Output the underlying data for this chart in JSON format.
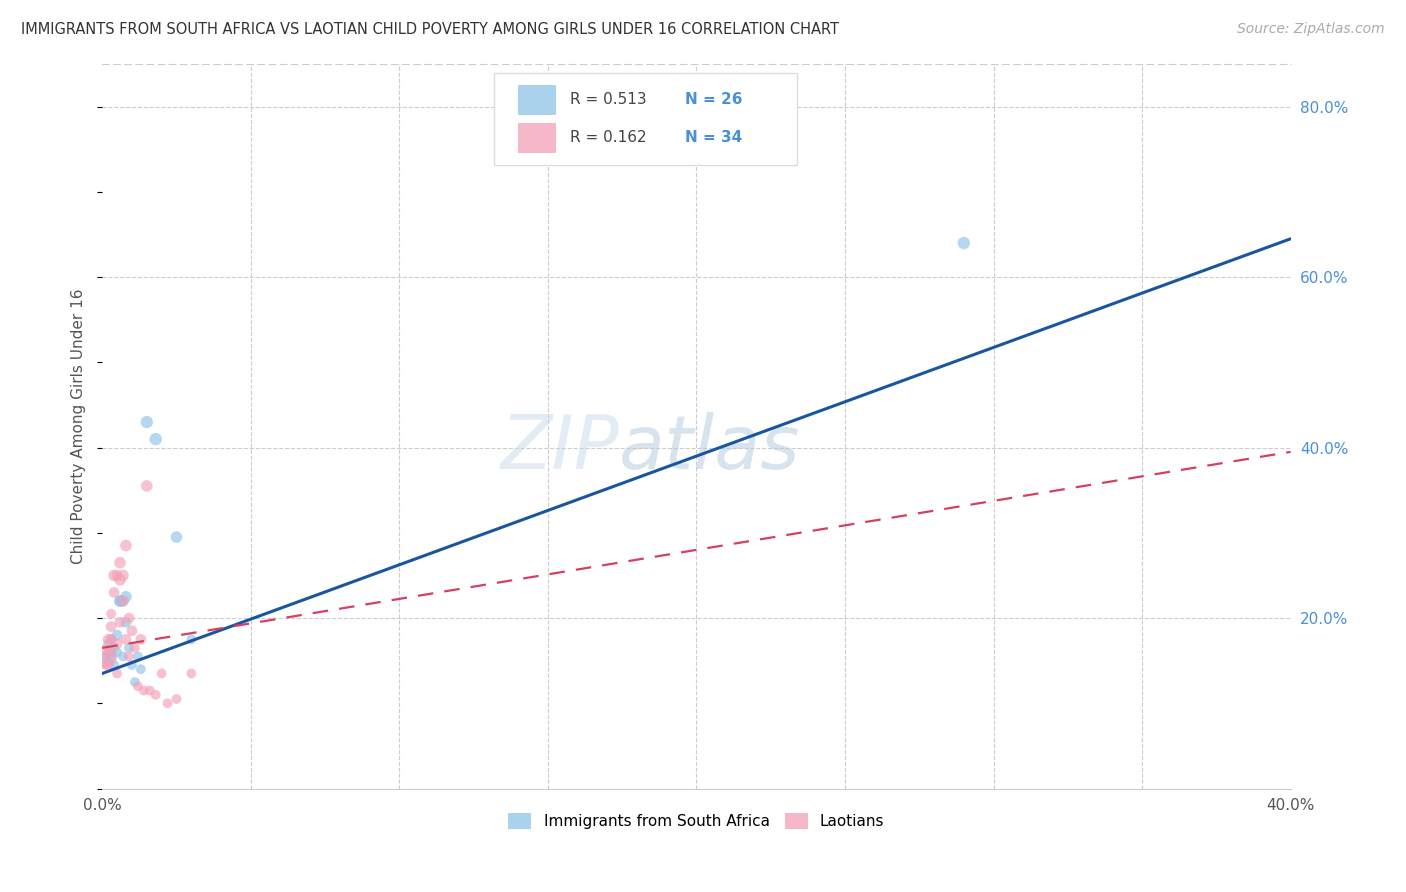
{
  "title": "IMMIGRANTS FROM SOUTH AFRICA VS LAOTIAN CHILD POVERTY AMONG GIRLS UNDER 16 CORRELATION CHART",
  "source": "Source: ZipAtlas.com",
  "ylabel": "Child Poverty Among Girls Under 16",
  "xlim": [
    0.0,
    0.4
  ],
  "ylim": [
    0.0,
    0.85
  ],
  "legend1_r": "R = 0.513",
  "legend1_n": "N = 26",
  "legend2_r": "R = 0.162",
  "legend2_n": "N = 34",
  "legend_label1": "Immigrants from South Africa",
  "legend_label2": "Laotians",
  "blue_color": "#8ec4e8",
  "pink_color": "#f4a0b8",
  "line_blue": "#1a56a0",
  "line_pink": "#d44060",
  "watermark_zip": "ZIP",
  "watermark_atlas": "atlas",
  "blue_points_x": [
    0.001,
    0.002,
    0.002,
    0.003,
    0.003,
    0.003,
    0.004,
    0.004,
    0.005,
    0.005,
    0.006,
    0.006,
    0.007,
    0.007,
    0.008,
    0.008,
    0.009,
    0.01,
    0.011,
    0.012,
    0.013,
    0.015,
    0.018,
    0.025,
    0.03,
    0.29
  ],
  "blue_points_y": [
    0.155,
    0.17,
    0.15,
    0.16,
    0.175,
    0.155,
    0.145,
    0.165,
    0.18,
    0.16,
    0.22,
    0.22,
    0.22,
    0.155,
    0.225,
    0.195,
    0.165,
    0.145,
    0.125,
    0.155,
    0.14,
    0.43,
    0.41,
    0.295,
    0.175,
    0.64
  ],
  "blue_sizes": [
    50,
    50,
    50,
    50,
    50,
    50,
    50,
    50,
    60,
    50,
    70,
    70,
    70,
    50,
    70,
    60,
    50,
    50,
    50,
    50,
    50,
    80,
    80,
    70,
    50,
    80
  ],
  "pink_points_x": [
    0.001,
    0.001,
    0.002,
    0.002,
    0.002,
    0.003,
    0.003,
    0.003,
    0.004,
    0.004,
    0.005,
    0.005,
    0.005,
    0.006,
    0.006,
    0.006,
    0.007,
    0.007,
    0.008,
    0.008,
    0.009,
    0.009,
    0.01,
    0.011,
    0.012,
    0.013,
    0.014,
    0.015,
    0.016,
    0.018,
    0.02,
    0.022,
    0.025,
    0.03
  ],
  "pink_points_y": [
    0.155,
    0.145,
    0.175,
    0.16,
    0.145,
    0.175,
    0.19,
    0.205,
    0.25,
    0.23,
    0.17,
    0.25,
    0.135,
    0.265,
    0.245,
    0.195,
    0.25,
    0.22,
    0.285,
    0.175,
    0.2,
    0.155,
    0.185,
    0.165,
    0.12,
    0.175,
    0.115,
    0.355,
    0.115,
    0.11,
    0.135,
    0.1,
    0.105,
    0.135
  ],
  "pink_sizes": [
    300,
    50,
    60,
    50,
    50,
    60,
    60,
    50,
    70,
    60,
    60,
    60,
    50,
    70,
    70,
    60,
    70,
    60,
    70,
    60,
    60,
    50,
    60,
    50,
    50,
    60,
    50,
    70,
    50,
    50,
    50,
    50,
    50,
    50
  ],
  "blue_line_x": [
    0.0,
    0.4
  ],
  "blue_line_y": [
    0.135,
    0.645
  ],
  "pink_line_x": [
    0.0,
    0.4
  ],
  "pink_line_y": [
    0.165,
    0.395
  ]
}
